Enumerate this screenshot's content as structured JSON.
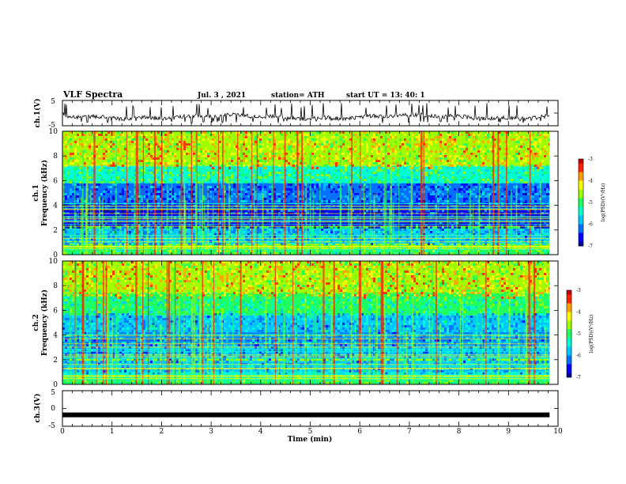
{
  "header": {
    "title": "VLF Spectra",
    "date": "Jul.  3  , 2021",
    "station": "station= ATH",
    "start": "start  UT  =   13: 40: 1"
  },
  "colors": {
    "palette": [
      "#000090",
      "#0000ff",
      "#0070ff",
      "#00c8ff",
      "#00ffd0",
      "#20ff60",
      "#a0ff00",
      "#ffff00",
      "#ffa000",
      "#ff2000",
      "#c00000"
    ]
  },
  "chart_data": [
    {
      "type": "line",
      "name": "ch.1 waveform",
      "ylabel": "ch.1(V)",
      "ylim": [
        -5,
        5
      ],
      "yticks": [
        "5",
        "-5"
      ],
      "xlim": [
        0,
        10
      ],
      "baseline_value": -1.5,
      "range_value": [
        -4,
        4
      ]
    },
    {
      "type": "heatmap",
      "name": "ch.1 spectrogram",
      "ylabel": "Frequency (kHz)",
      "ylabel_ch": "ch.1",
      "ylim": [
        0,
        10
      ],
      "yticks": [
        "0",
        "2",
        "4",
        "6",
        "8",
        "10"
      ],
      "xlim": [
        0,
        9.83
      ],
      "colorbar": {
        "label": "log(PSD)(V²/Hz)",
        "range": [
          -7,
          -3
        ],
        "ticks": [
          "-3",
          "-4",
          "-5",
          "-6",
          "-7"
        ]
      }
    },
    {
      "type": "heatmap",
      "name": "ch.2 spectrogram",
      "ylabel": "Frequency (kHz)",
      "ylabel_ch": "ch.2",
      "ylim": [
        0,
        10
      ],
      "yticks": [
        "0",
        "2",
        "4",
        "6",
        "8",
        "10"
      ],
      "xlim": [
        0,
        9.83
      ],
      "colorbar": {
        "label": "log(PSD)(V²/Hz)",
        "range": [
          -7,
          -3
        ],
        "ticks": [
          "-3",
          "-4",
          "-5",
          "-6",
          "-7"
        ]
      }
    },
    {
      "type": "line",
      "name": "ch.3 waveform",
      "ylabel": "ch.3(V)",
      "ylim": [
        -5,
        5
      ],
      "yticks": [
        "5",
        "0",
        "-5"
      ],
      "xlim": [
        0,
        10
      ],
      "baseline_value": -1.8
    }
  ],
  "xaxis": {
    "label": "Time  (min)",
    "ticks": [
      "0",
      "1",
      "2",
      "3",
      "4",
      "5",
      "6",
      "7",
      "8",
      "9",
      "10"
    ],
    "range": [
      0,
      10
    ]
  }
}
